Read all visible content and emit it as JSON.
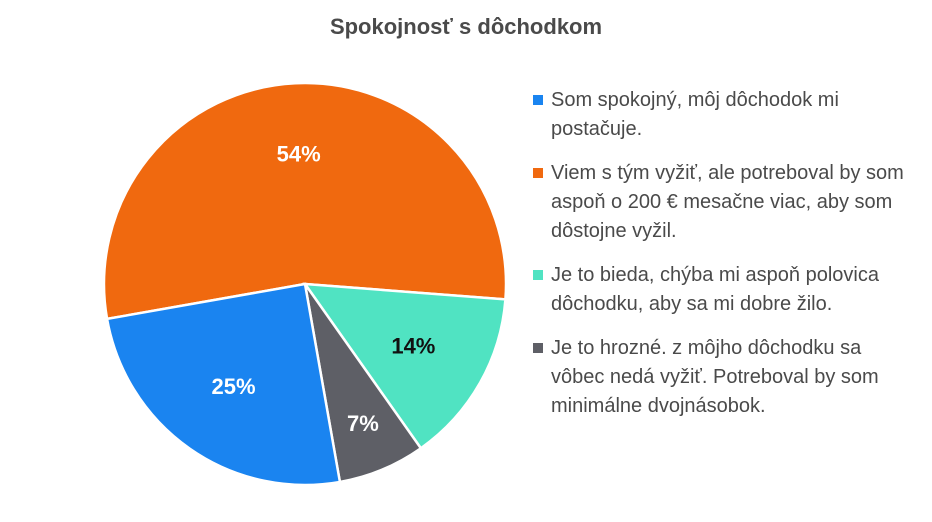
{
  "chart_data": {
    "type": "pie",
    "title": "Spokojnosť s dôchodkom",
    "legend_position": "right",
    "slices": [
      {
        "label": "Viem s tým vyžiť, ale potreboval by som aspoň o 200 € mesačne viac, aby som dôstojne vyžil.",
        "value": 54,
        "display": "54%",
        "color": "#F0690F",
        "text_color": "#ffffff"
      },
      {
        "label": "Je to bieda, chýba mi aspoň polovica dôchodku, aby sa mi dobre žilo.",
        "value": 14,
        "display": "14%",
        "color": "#50E3C2",
        "text_color": "#111111"
      },
      {
        "label": "Je to hrozné. z môjho dôchodku sa vôbec nedá vyžiť. Potreboval by som minimálne dvojnásobok.",
        "value": 7,
        "display": "7%",
        "color": "#5E5F66",
        "text_color": "#ffffff"
      },
      {
        "label": "Som spokojný, môj dôchodok mi postačuje.",
        "value": 25,
        "display": "25%",
        "color": "#1A84F0",
        "text_color": "#ffffff"
      }
    ],
    "legend_order": [
      3,
      0,
      1,
      2
    ]
  }
}
